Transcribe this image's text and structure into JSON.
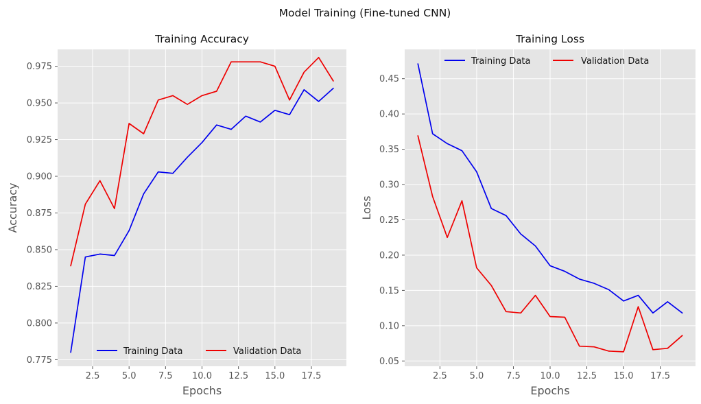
{
  "figure": {
    "title": "Model Training (Fine-tuned CNN)"
  },
  "chart_data": [
    {
      "type": "line",
      "title": "Training Accuracy",
      "xlabel": "Epochs",
      "ylabel": "Accuracy",
      "xlim": [
        0.1,
        19.9
      ],
      "ylim": [
        0.7705,
        0.9865
      ],
      "xticks": [
        2.5,
        5.0,
        7.5,
        10.0,
        12.5,
        15.0,
        17.5
      ],
      "xtick_labels": [
        "2.5",
        "5.0",
        "7.5",
        "10.0",
        "12.5",
        "15.0",
        "17.5"
      ],
      "yticks": [
        0.775,
        0.8,
        0.825,
        0.85,
        0.875,
        0.9,
        0.925,
        0.95,
        0.975
      ],
      "ytick_labels": [
        "0.775",
        "0.800",
        "0.825",
        "0.850",
        "0.875",
        "0.900",
        "0.925",
        "0.950",
        "0.975"
      ],
      "grid": true,
      "legend_position": "lower-center",
      "x": [
        1,
        2,
        3,
        4,
        5,
        6,
        7,
        8,
        9,
        10,
        11,
        12,
        13,
        14,
        15,
        16,
        17,
        18,
        19
      ],
      "series": [
        {
          "name": "Training Data",
          "color": "#0000ee",
          "values": [
            0.78,
            0.845,
            0.847,
            0.846,
            0.863,
            0.888,
            0.903,
            0.902,
            0.913,
            0.923,
            0.935,
            0.932,
            0.941,
            0.937,
            0.945,
            0.942,
            0.959,
            0.951,
            0.96
          ]
        },
        {
          "name": "Validation Data",
          "color": "#ee0000",
          "values": [
            0.839,
            0.881,
            0.897,
            0.878,
            0.936,
            0.929,
            0.952,
            0.955,
            0.949,
            0.955,
            0.958,
            0.978,
            0.978,
            0.978,
            0.975,
            0.952,
            0.971,
            0.981,
            0.965
          ]
        }
      ]
    },
    {
      "type": "line",
      "title": "Training Loss",
      "xlabel": "Epochs",
      "ylabel": "Loss",
      "xlim": [
        0.1,
        19.9
      ],
      "ylim": [
        0.0425,
        0.4915
      ],
      "xticks": [
        2.5,
        5.0,
        7.5,
        10.0,
        12.5,
        15.0,
        17.5
      ],
      "xtick_labels": [
        "2.5",
        "5.0",
        "7.5",
        "10.0",
        "12.5",
        "15.0",
        "17.5"
      ],
      "yticks": [
        0.05,
        0.1,
        0.15,
        0.2,
        0.25,
        0.3,
        0.35,
        0.4,
        0.45
      ],
      "ytick_labels": [
        "0.05",
        "0.10",
        "0.15",
        "0.20",
        "0.25",
        "0.30",
        "0.35",
        "0.40",
        "0.45"
      ],
      "grid": true,
      "legend_position": "upper-center",
      "x": [
        1,
        2,
        3,
        4,
        5,
        6,
        7,
        8,
        9,
        10,
        11,
        12,
        13,
        14,
        15,
        16,
        17,
        18,
        19
      ],
      "series": [
        {
          "name": "Training Data",
          "color": "#0000ee",
          "values": [
            0.471,
            0.372,
            0.358,
            0.348,
            0.318,
            0.266,
            0.256,
            0.23,
            0.213,
            0.185,
            0.177,
            0.166,
            0.16,
            0.151,
            0.135,
            0.143,
            0.118,
            0.134,
            0.118
          ]
        },
        {
          "name": "Validation Data",
          "color": "#ee0000",
          "values": [
            0.369,
            0.283,
            0.225,
            0.277,
            0.182,
            0.157,
            0.12,
            0.118,
            0.143,
            0.113,
            0.112,
            0.071,
            0.07,
            0.064,
            0.063,
            0.127,
            0.066,
            0.068,
            0.086
          ]
        }
      ]
    }
  ]
}
